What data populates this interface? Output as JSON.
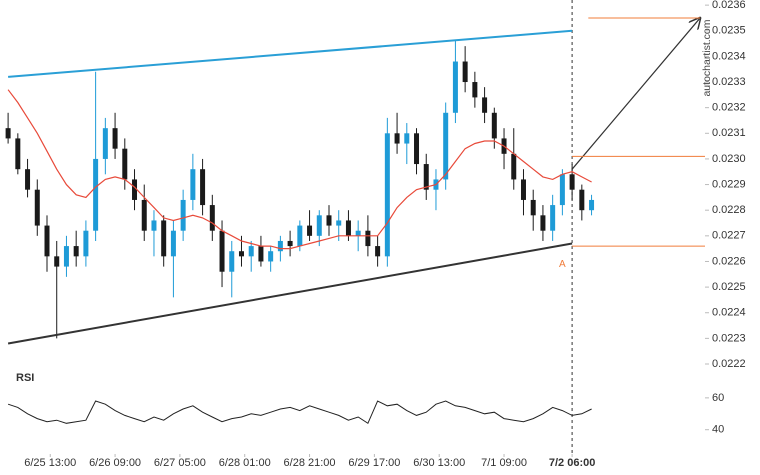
{
  "chart_data": {
    "type": "candlestick",
    "watermark": "autochartist.com",
    "x": [
      0,
      3,
      6,
      9,
      12,
      15,
      18,
      21,
      24,
      27,
      30,
      33,
      36,
      39,
      42,
      45,
      48,
      51,
      54,
      57,
      60,
      63,
      66,
      69,
      72,
      75,
      78,
      81,
      84,
      87,
      90,
      93,
      96,
      99,
      102,
      105,
      108,
      111,
      114,
      117,
      120,
      123,
      126,
      129,
      132,
      135,
      138,
      141,
      144,
      147,
      150,
      153,
      156,
      159,
      162,
      165,
      168,
      171,
      174,
      177,
      180
    ],
    "open": [
      0.02312,
      0.02308,
      0.02296,
      0.02288,
      0.02274,
      0.02262,
      0.02258,
      0.02266,
      0.02262,
      0.02272,
      0.023,
      0.02312,
      0.02304,
      0.02292,
      0.02284,
      0.02272,
      0.02276,
      0.02262,
      0.02272,
      0.02284,
      0.02296,
      0.02282,
      0.02272,
      0.02256,
      0.02264,
      0.02262,
      0.02266,
      0.0226,
      0.02264,
      0.02268,
      0.02266,
      0.02274,
      0.0227,
      0.02278,
      0.02274,
      0.02276,
      0.0227,
      0.02272,
      0.02266,
      0.02262,
      0.0231,
      0.02306,
      0.0231,
      0.02298,
      0.02288,
      0.02292,
      0.02318,
      0.02338,
      0.0233,
      0.02324,
      0.02318,
      0.02308,
      0.02302,
      0.02292,
      0.02284,
      0.02278,
      0.02272,
      0.02282,
      0.02294,
      0.02288,
      0.0228
    ],
    "high": [
      0.02318,
      0.0231,
      0.023,
      0.02292,
      0.02278,
      0.02268,
      0.0227,
      0.02272,
      0.02276,
      0.02334,
      0.02316,
      0.02318,
      0.02308,
      0.02296,
      0.0229,
      0.0228,
      0.02278,
      0.02276,
      0.02288,
      0.02302,
      0.023,
      0.02286,
      0.02276,
      0.02268,
      0.0227,
      0.02268,
      0.0227,
      0.02266,
      0.0227,
      0.02272,
      0.02276,
      0.0228,
      0.0228,
      0.02282,
      0.0228,
      0.0228,
      0.02276,
      0.02278,
      0.0227,
      0.02316,
      0.02318,
      0.02314,
      0.02312,
      0.02302,
      0.02296,
      0.02322,
      0.02346,
      0.02344,
      0.02334,
      0.02328,
      0.0232,
      0.02312,
      0.02312,
      0.02296,
      0.02288,
      0.02282,
      0.02286,
      0.02296,
      0.02298,
      0.0229,
      0.02286
    ],
    "low": [
      0.02306,
      0.02294,
      0.02285,
      0.0227,
      0.02256,
      0.0223,
      0.02254,
      0.02258,
      0.02258,
      0.02268,
      0.02294,
      0.023,
      0.02288,
      0.0228,
      0.02268,
      0.02262,
      0.02258,
      0.02246,
      0.02268,
      0.0228,
      0.02278,
      0.02268,
      0.0225,
      0.02246,
      0.02258,
      0.02256,
      0.02258,
      0.02256,
      0.0226,
      0.02262,
      0.02264,
      0.02268,
      0.02266,
      0.0227,
      0.02268,
      0.02268,
      0.02264,
      0.02262,
      0.02258,
      0.02258,
      0.02302,
      0.02298,
      0.02294,
      0.02284,
      0.0228,
      0.02288,
      0.02314,
      0.02326,
      0.0232,
      0.02314,
      0.02304,
      0.02296,
      0.02288,
      0.02278,
      0.02272,
      0.02268,
      0.02268,
      0.02278,
      0.02284,
      0.02276,
      0.02278
    ],
    "close": [
      0.02308,
      0.02296,
      0.02288,
      0.02274,
      0.02262,
      0.02258,
      0.02266,
      0.02262,
      0.02272,
      0.023,
      0.02312,
      0.02304,
      0.02292,
      0.02284,
      0.02272,
      0.02276,
      0.02262,
      0.02272,
      0.02284,
      0.02296,
      0.02282,
      0.02272,
      0.02256,
      0.02264,
      0.02262,
      0.02266,
      0.0226,
      0.02264,
      0.02268,
      0.02266,
      0.02274,
      0.0227,
      0.02278,
      0.02274,
      0.02276,
      0.0227,
      0.02272,
      0.02266,
      0.02262,
      0.0231,
      0.02306,
      0.0231,
      0.02298,
      0.02288,
      0.02292,
      0.02318,
      0.02338,
      0.0233,
      0.02324,
      0.02318,
      0.02308,
      0.02302,
      0.02292,
      0.02284,
      0.02278,
      0.02272,
      0.02282,
      0.02294,
      0.02288,
      0.0228,
      0.02284
    ],
    "up_color": "#1e9bd7",
    "down_color": "#1a1a1a",
    "moving_average": {
      "color": "#e84a3a",
      "values": [
        0.02327,
        0.02322,
        0.02316,
        0.0231,
        0.02303,
        0.02296,
        0.0229,
        0.02286,
        0.02285,
        0.02289,
        0.02292,
        0.02293,
        0.02292,
        0.02289,
        0.02285,
        0.02281,
        0.02277,
        0.02276,
        0.02277,
        0.02278,
        0.02277,
        0.02275,
        0.02272,
        0.0227,
        0.02268,
        0.02267,
        0.02266,
        0.02266,
        0.02265,
        0.02265,
        0.02266,
        0.02267,
        0.02268,
        0.02269,
        0.0227,
        0.0227,
        0.0227,
        0.0227,
        0.0227,
        0.02275,
        0.02281,
        0.02285,
        0.02288,
        0.02289,
        0.0229,
        0.02294,
        0.02299,
        0.02304,
        0.02306,
        0.02307,
        0.02307,
        0.02305,
        0.02302,
        0.02299,
        0.02296,
        0.02293,
        0.02292,
        0.02294,
        0.02295,
        0.02293,
        0.02291
      ]
    },
    "xlim": [
      -2.5,
      215
    ],
    "ylim": [
      0.0222,
      0.02362
    ],
    "yticks": [
      0.0222,
      0.0223,
      0.0224,
      0.0225,
      0.0226,
      0.0227,
      0.0228,
      0.0229,
      {
        "value": 0.023,
        "label": "0.0230"
      },
      0.0231,
      0.0232,
      0.0233,
      0.0234,
      0.0235,
      0.0236
    ],
    "xticks": [
      {
        "value": 13,
        "label": "6/25 13:00"
      },
      {
        "value": 33,
        "label": "6/26 09:00"
      },
      {
        "value": 53,
        "label": "6/27 05:00"
      },
      {
        "value": 73,
        "label": "6/28 01:00"
      },
      {
        "value": 93,
        "label": "6/28 21:00"
      },
      {
        "value": 113,
        "label": "6/29 17:00"
      },
      {
        "value": 133,
        "label": "6/30 13:00"
      },
      {
        "value": 153,
        "label": "7/1 09:00"
      },
      {
        "value": 174,
        "label": "7/2 06:00"
      }
    ],
    "current_x": 174,
    "resistance": {
      "color": "#2a9fd6",
      "x": [
        0,
        174
      ],
      "y": [
        0.02332,
        0.0235
      ]
    },
    "support": {
      "color": "#333333",
      "x": [
        0,
        174
      ],
      "y": [
        0.02228,
        0.02267
      ]
    },
    "forecast_arrow": {
      "color": "#333333",
      "x": [
        174,
        213.5
      ],
      "y": [
        0.02296,
        0.02355
      ]
    },
    "levels": {
      "color": "#f07c3a",
      "items": [
        {
          "x": [
            179,
            213.5
          ],
          "y": 0.02355
        },
        {
          "x": [
            174,
            215
          ],
          "y": 0.02301
        },
        {
          "x": [
            174,
            215
          ],
          "y": 0.02266
        }
      ]
    },
    "point_label": {
      "text": "A",
      "x": 171,
      "y": 0.02262
    },
    "rsi": {
      "title": "RSI",
      "color": "#222222",
      "ylim": [
        26,
        77.5
      ],
      "yticks": [
        40,
        60
      ],
      "values": [
        56,
        54,
        50,
        47,
        45,
        46,
        44,
        45,
        46,
        58,
        56,
        52,
        49,
        47,
        45,
        48,
        46,
        50,
        53,
        55,
        51,
        48,
        45,
        47,
        48,
        50,
        49,
        51,
        53,
        54,
        52,
        55,
        53,
        51,
        49,
        46,
        48,
        44,
        58,
        55,
        56,
        52,
        49,
        51,
        56,
        58,
        55,
        54,
        52,
        50,
        51,
        47,
        46,
        45,
        47,
        50,
        54,
        52,
        49,
        50,
        53
      ]
    }
  }
}
